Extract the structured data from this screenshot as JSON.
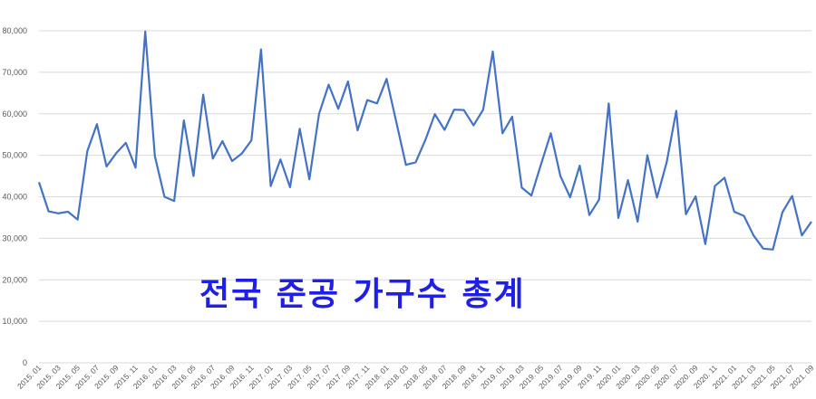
{
  "overlay_text": "전국 준공 가구수 총계",
  "chart_data": {
    "type": "line",
    "title": "",
    "xlabel": "",
    "ylabel": "",
    "ylim": [
      0,
      80000
    ],
    "y_ticks": [
      "0",
      "10,000",
      "20,000",
      "30,000",
      "40,000",
      "50,000",
      "60,000",
      "70,000",
      "80,000"
    ],
    "grid": "horizontal",
    "line_color": "#4472c4",
    "x_labels": [
      "2015. 01",
      "2015. 03",
      "2015. 05",
      "2015. 07",
      "2015. 09",
      "2015. 11",
      "2016. 01",
      "2016. 03",
      "2016. 05",
      "2016. 07",
      "2016. 09",
      "2016. 11",
      "2017. 01",
      "2017. 03",
      "2017. 05",
      "2017. 07",
      "2017. 09",
      "2017. 11",
      "2018. 01",
      "2018. 03",
      "2018. 05",
      "2018. 07",
      "2018. 09",
      "2018. 11",
      "2019. 01",
      "2019. 03",
      "2019. 05",
      "2019. 07",
      "2019. 09",
      "2019. 11",
      "2020. 01",
      "2020. 03",
      "2020. 05",
      "2020. 07",
      "2020. 09",
      "2020. 11",
      "2021. 01",
      "2021. 03",
      "2021. 05",
      "2021. 07",
      "2021. 09"
    ],
    "x": [
      "2015-01",
      "2015-02",
      "2015-03",
      "2015-04",
      "2015-05",
      "2015-06",
      "2015-07",
      "2015-08",
      "2015-09",
      "2015-10",
      "2015-11",
      "2015-12",
      "2016-01",
      "2016-02",
      "2016-03",
      "2016-04",
      "2016-05",
      "2016-06",
      "2016-07",
      "2016-08",
      "2016-09",
      "2016-10",
      "2016-11",
      "2016-12",
      "2017-01",
      "2017-02",
      "2017-03",
      "2017-04",
      "2017-05",
      "2017-06",
      "2017-07",
      "2017-08",
      "2017-09",
      "2017-10",
      "2017-11",
      "2017-12",
      "2018-01",
      "2018-02",
      "2018-03",
      "2018-04",
      "2018-05",
      "2018-06",
      "2018-07",
      "2018-08",
      "2018-09",
      "2018-10",
      "2018-11",
      "2018-12",
      "2019-01",
      "2019-02",
      "2019-03",
      "2019-04",
      "2019-05",
      "2019-06",
      "2019-07",
      "2019-08",
      "2019-09",
      "2019-10",
      "2019-11",
      "2019-12",
      "2020-01",
      "2020-02",
      "2020-03",
      "2020-04",
      "2020-05",
      "2020-06",
      "2020-07",
      "2020-08",
      "2020-09",
      "2020-10",
      "2020-11",
      "2020-12",
      "2021-01",
      "2021-02",
      "2021-03",
      "2021-04",
      "2021-05",
      "2021-06",
      "2021-07",
      "2021-08",
      "2021-09"
    ],
    "values": [
      43500,
      36500,
      36000,
      36400,
      34500,
      51000,
      57500,
      47300,
      50500,
      53000,
      47000,
      79800,
      49800,
      40000,
      39000,
      58400,
      45000,
      64600,
      49200,
      53400,
      48600,
      50400,
      53600,
      75500,
      42600,
      49000,
      42300,
      56400,
      44200,
      60000,
      67000,
      61200,
      67800,
      56000,
      63300,
      62500,
      68400,
      58000,
      47700,
      48300,
      53600,
      59900,
      56100,
      61000,
      60900,
      57200,
      61000,
      75000,
      55300,
      59300,
      42200,
      40300,
      47900,
      55300,
      45000,
      39900,
      47500,
      35600,
      39300,
      62500,
      34900,
      44000,
      34000,
      50000,
      39800,
      48300,
      60700,
      35800,
      40100,
      28600,
      42600,
      44600,
      36400,
      35400,
      30700,
      27500,
      27300,
      36300,
      40200,
      30700,
      34000
    ]
  }
}
